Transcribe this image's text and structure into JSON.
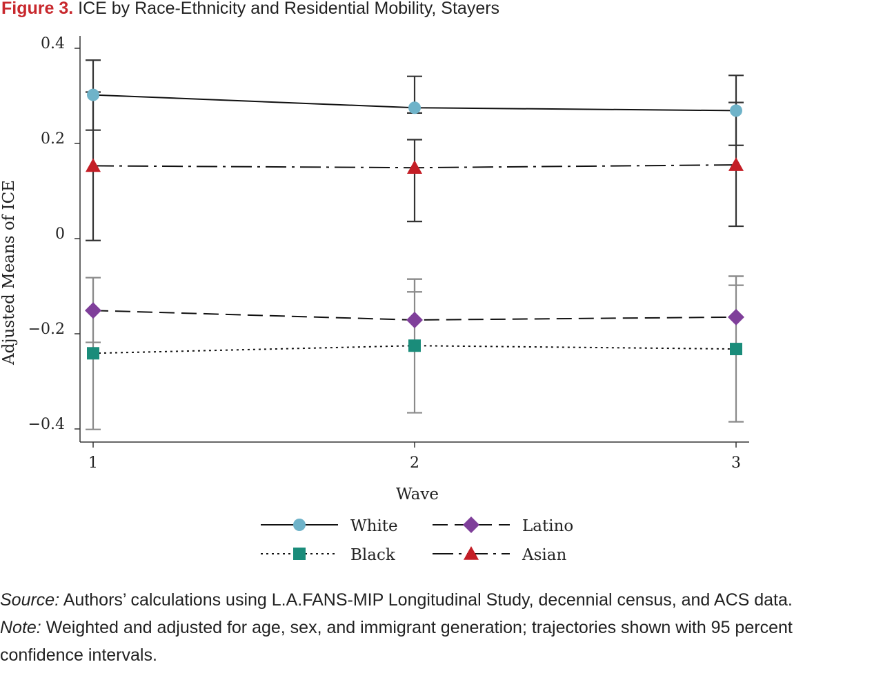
{
  "figure": {
    "label": "Figure 3.",
    "title": "ICE by Race-Ethnicity and Residential Mobility, Stayers"
  },
  "chart_data": {
    "type": "line",
    "xlabel": "Wave",
    "ylabel": "Adjusted Means of ICE",
    "x": [
      1,
      2,
      3
    ],
    "x_ticks": [
      "1",
      "2",
      "3"
    ],
    "y_ticks": [
      {
        "value": 0.4,
        "label": "0.4"
      },
      {
        "value": 0.2,
        "label": "0.2"
      },
      {
        "value": 0,
        "label": "0"
      },
      {
        "value": -0.2,
        "label": "−0.2"
      },
      {
        "value": -0.4,
        "label": "−0.4"
      }
    ],
    "ylim": [
      -0.42,
      0.42
    ],
    "grid": false,
    "legend_position": "bottom",
    "series": [
      {
        "name": "White",
        "values": [
          0.302,
          0.275,
          0.269
        ],
        "ci_low": [
          0.228,
          0.264,
          0.196
        ],
        "ci_high": [
          0.375,
          0.341,
          0.343
        ],
        "color": "#6fb3c9",
        "marker": "circle",
        "line": "solid"
      },
      {
        "name": "Latino",
        "values": [
          -0.151,
          -0.171,
          -0.165
        ],
        "ci_low": [
          -0.218,
          -0.112,
          -0.098
        ],
        "ci_high": [
          -0.082,
          -0.085,
          -0.079
        ],
        "color": "#7f3f9a",
        "marker": "diamond",
        "line": "dashed"
      },
      {
        "name": "Black",
        "values": [
          -0.241,
          -0.225,
          -0.232
        ],
        "ci_low": [
          -0.401,
          -0.366,
          -0.385
        ],
        "ci_high": [
          -0.082,
          -0.085,
          -0.079
        ],
        "color": "#1a8c7a",
        "marker": "square",
        "line": "dotted"
      },
      {
        "name": "Asian",
        "values": [
          0.153,
          0.149,
          0.155
        ],
        "ci_low": [
          -0.004,
          0.036,
          0.026
        ],
        "ci_high": [
          0.308,
          0.208,
          0.286
        ],
        "color": "#c41e26",
        "marker": "triangle",
        "line": "dashdot"
      }
    ]
  },
  "notes": {
    "source_label": "Source:",
    "source_text": " Authors’ calculations using L.A.FANS-MIP Longitudinal Study, decennial census, and ACS data.",
    "note_label": "Note:",
    "note_text": " Weighted and adjusted for age, sex, and immigrant generation; trajectories shown with 95 per­cent confidence intervals."
  }
}
